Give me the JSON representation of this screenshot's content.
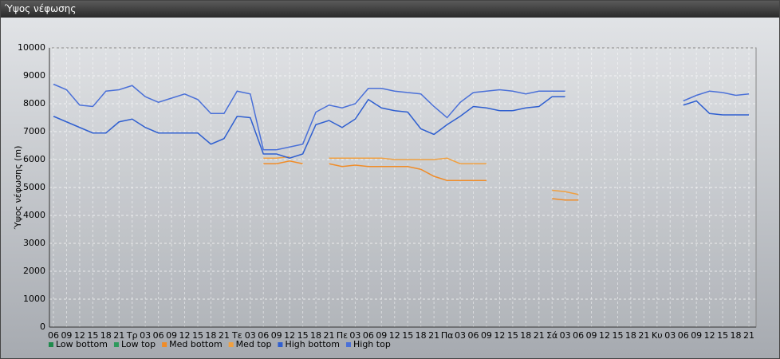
{
  "chart_data": {
    "type": "line",
    "title": "Ύψος νέφωσης",
    "ylabel": "Ύψος νέφωσης (m)",
    "categories": [
      "06",
      "09",
      "12",
      "15",
      "18",
      "21",
      "Τρ",
      "03",
      "06",
      "09",
      "12",
      "15",
      "18",
      "21",
      "Τε",
      "03",
      "06",
      "09",
      "12",
      "15",
      "18",
      "21",
      "Πε",
      "03",
      "06",
      "09",
      "12",
      "15",
      "18",
      "21",
      "Πα",
      "03",
      "06",
      "09",
      "12",
      "15",
      "18",
      "21",
      "Σά",
      "03",
      "06",
      "09",
      "12",
      "15",
      "18",
      "21",
      "Κυ",
      "03",
      "06",
      "09",
      "12",
      "15",
      "18",
      "21"
    ],
    "ylim": [
      0,
      10000
    ],
    "yticks": [
      0,
      1000,
      2000,
      3000,
      4000,
      5000,
      6000,
      7000,
      8000,
      9000,
      10000
    ],
    "grid": true,
    "legend": "bottom",
    "series": [
      {
        "name": "Low bottom",
        "color": "#1f8a4c",
        "values": [
          null,
          null,
          null,
          null,
          null,
          null,
          null,
          null,
          null,
          null,
          null,
          null,
          null,
          null,
          null,
          null,
          null,
          null,
          null,
          null,
          null,
          null,
          null,
          null,
          null,
          null,
          null,
          null,
          null,
          null,
          null,
          null,
          null,
          null,
          null,
          null,
          null,
          null,
          null,
          null,
          null,
          null,
          null,
          null,
          null,
          null,
          null,
          null,
          null,
          null,
          null,
          null,
          null,
          null
        ]
      },
      {
        "name": "Low top",
        "color": "#2e9a5c",
        "values": [
          null,
          null,
          null,
          null,
          null,
          null,
          null,
          null,
          null,
          null,
          null,
          null,
          null,
          null,
          null,
          null,
          null,
          null,
          null,
          null,
          null,
          null,
          null,
          null,
          null,
          null,
          null,
          null,
          null,
          null,
          null,
          null,
          null,
          null,
          null,
          null,
          null,
          null,
          null,
          null,
          null,
          null,
          null,
          null,
          null,
          null,
          null,
          null,
          null,
          null,
          null,
          null,
          null,
          null
        ]
      },
      {
        "name": "Med bottom",
        "color": "#f08c28",
        "values": [
          null,
          null,
          null,
          null,
          null,
          null,
          null,
          null,
          null,
          null,
          null,
          null,
          null,
          null,
          null,
          null,
          5850,
          5850,
          5950,
          5850,
          null,
          5850,
          5750,
          5800,
          5750,
          5750,
          5750,
          5750,
          5650,
          5400,
          5250,
          5250,
          5250,
          5250,
          null,
          null,
          null,
          null,
          4600,
          4550,
          4550,
          null,
          null,
          null,
          null,
          null,
          null,
          null,
          null,
          null,
          null,
          null,
          null,
          null
        ]
      },
      {
        "name": "Med top",
        "color": "#f0a040",
        "values": [
          null,
          null,
          null,
          null,
          null,
          null,
          null,
          null,
          null,
          null,
          null,
          null,
          null,
          null,
          null,
          null,
          6050,
          6050,
          6100,
          null,
          null,
          6050,
          6050,
          6050,
          6050,
          6050,
          6000,
          6000,
          6000,
          6000,
          6050,
          5850,
          5850,
          5850,
          null,
          null,
          null,
          null,
          4900,
          4850,
          4750,
          null,
          null,
          null,
          null,
          null,
          null,
          null,
          null,
          null,
          null,
          null,
          null,
          null
        ]
      },
      {
        "name": "High bottom",
        "color": "#2f5fd0",
        "values": [
          7550,
          7350,
          7150,
          6950,
          6950,
          7350,
          7450,
          7150,
          6950,
          6950,
          6950,
          6950,
          6550,
          6750,
          7550,
          7500,
          6200,
          6200,
          6050,
          6200,
          7250,
          7400,
          7150,
          7450,
          8150,
          7850,
          7750,
          7700,
          7100,
          6900,
          7250,
          7550,
          7900,
          7850,
          7750,
          7750,
          7850,
          7900,
          8250,
          8250,
          null,
          null,
          null,
          null,
          null,
          null,
          null,
          null,
          7950,
          8100,
          7650,
          7600,
          7600,
          7600
        ]
      },
      {
        "name": "High top",
        "color": "#4a70d8",
        "values": [
          8700,
          8500,
          7950,
          7900,
          8450,
          8500,
          8650,
          8250,
          8050,
          8200,
          8350,
          8150,
          7650,
          7650,
          8450,
          8350,
          6350,
          6350,
          6450,
          6550,
          7700,
          7950,
          7850,
          8000,
          8550,
          8550,
          8450,
          8400,
          8350,
          7900,
          7500,
          8050,
          8400,
          8450,
          8500,
          8450,
          8350,
          8450,
          8450,
          8450,
          null,
          null,
          null,
          null,
          null,
          null,
          null,
          null,
          8100,
          8300,
          8450,
          8400,
          8300,
          8350
        ]
      }
    ]
  }
}
